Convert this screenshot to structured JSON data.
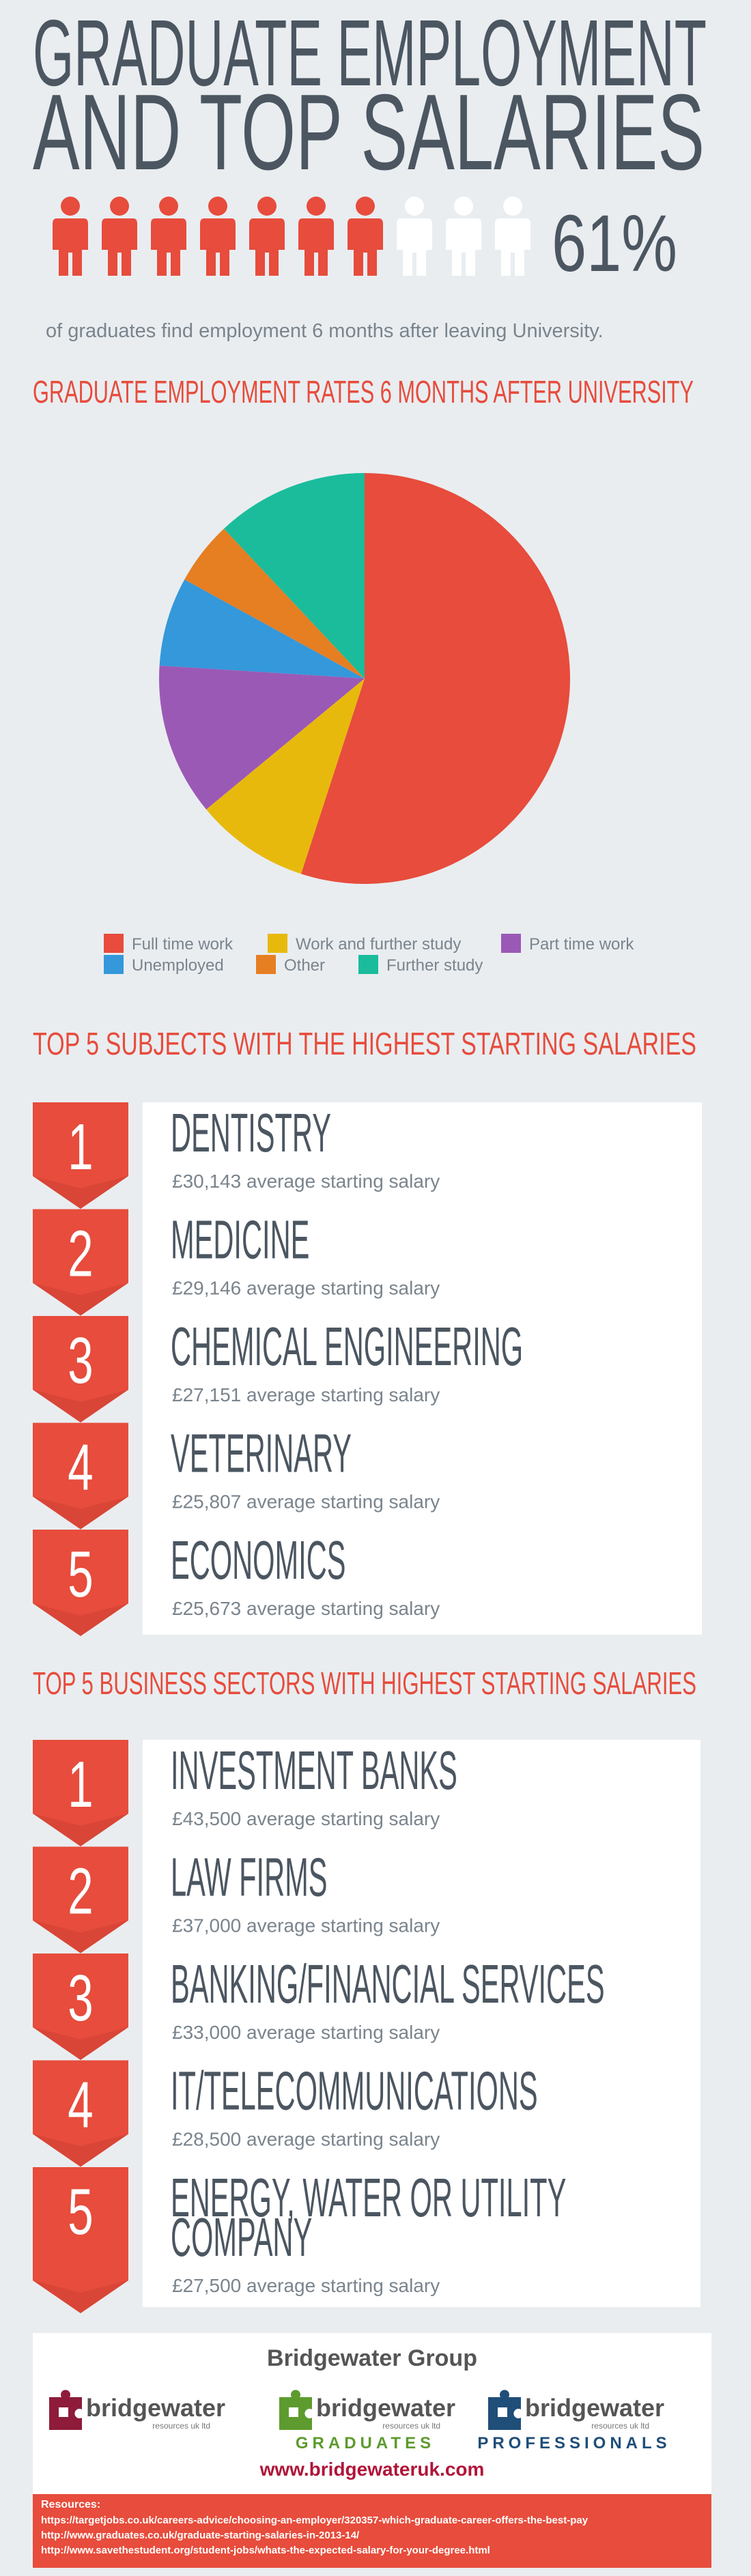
{
  "header": {
    "title_line1": "GRADUATE EMPLOYMENT",
    "title_line2": "AND TOP SALARIES",
    "stat": {
      "value": 61,
      "label": "61%"
    },
    "subtitle": "of graduates find employment 6 months after leaving University."
  },
  "chart_data": {
    "type": "pie",
    "title": "GRADUATE EMPLOYMENT RATES 6 MONTHS AFTER UNIVERSITY",
    "categories": [
      "Full time work",
      "Work and further study",
      "Part time work",
      "Unemployed",
      "Other",
      "Further study"
    ],
    "values": [
      55,
      9,
      12,
      7,
      5,
      12
    ],
    "colors": [
      "#e74c3c",
      "#e8b90d",
      "#9b59b6",
      "#3498db",
      "#e67e22",
      "#1abc9c"
    ],
    "legend": "bottom"
  },
  "subjects": {
    "title": "TOP 5 SUBJECTS WITH THE HIGHEST STARTING SALARIES",
    "items": [
      {
        "rank": 1,
        "name": "DENTISTRY",
        "salary": "£30,143 average starting salary"
      },
      {
        "rank": 2,
        "name": "MEDICINE",
        "salary": "£29,146 average starting salary"
      },
      {
        "rank": 3,
        "name": "CHEMICAL ENGINEERING",
        "salary": "£27,151 average starting salary"
      },
      {
        "rank": 4,
        "name": "VETERINARY",
        "salary": "£25,807 average starting salary"
      },
      {
        "rank": 5,
        "name": "ECONOMICS",
        "salary": "£25,673 average starting salary"
      }
    ]
  },
  "sectors": {
    "title": "TOP 5 BUSINESS SECTORS WITH HIGHEST STARTING SALARIES",
    "items": [
      {
        "rank": 1,
        "name": "INVESTMENT BANKS",
        "salary": "£43,500 average starting salary"
      },
      {
        "rank": 2,
        "name": "LAW FIRMS",
        "salary": "£37,000 average starting salary"
      },
      {
        "rank": 3,
        "name": "BANKING/FINANCIAL SERVICES",
        "salary": "£33,000 average starting salary"
      },
      {
        "rank": 4,
        "name": "IT/TELECOMMUNICATIONS",
        "salary": "£28,500 average starting salary"
      },
      {
        "rank": 5,
        "name": "ENERGY, WATER OR UTILITY COMPANY",
        "salary": "£27,500 average starting salary"
      }
    ]
  },
  "footer": {
    "title": "Bridgewater Group",
    "logos": [
      {
        "name": "bridgewater",
        "sub": "resources uk ltd"
      },
      {
        "name": "bridgewater",
        "sub": "resources uk ltd",
        "tag": "GRADUATES"
      },
      {
        "name": "bridgewater",
        "sub": "resources uk ltd",
        "tag": "PROFESSIONALS"
      }
    ],
    "url": "www.bridgewateruk.com",
    "resources_label": "Resources:",
    "resources": [
      "https://targetjobs.co.uk/careers-advice/choosing-an-employer/320357-which-graduate-career-offers-the-best-pay",
      "http://www.graduates.co.uk/graduate-starting-salaries-in-2013-14/",
      "http://www.savethestudent.org/student-jobs/whats-the-expected-salary-for-your-degree.html"
    ]
  }
}
